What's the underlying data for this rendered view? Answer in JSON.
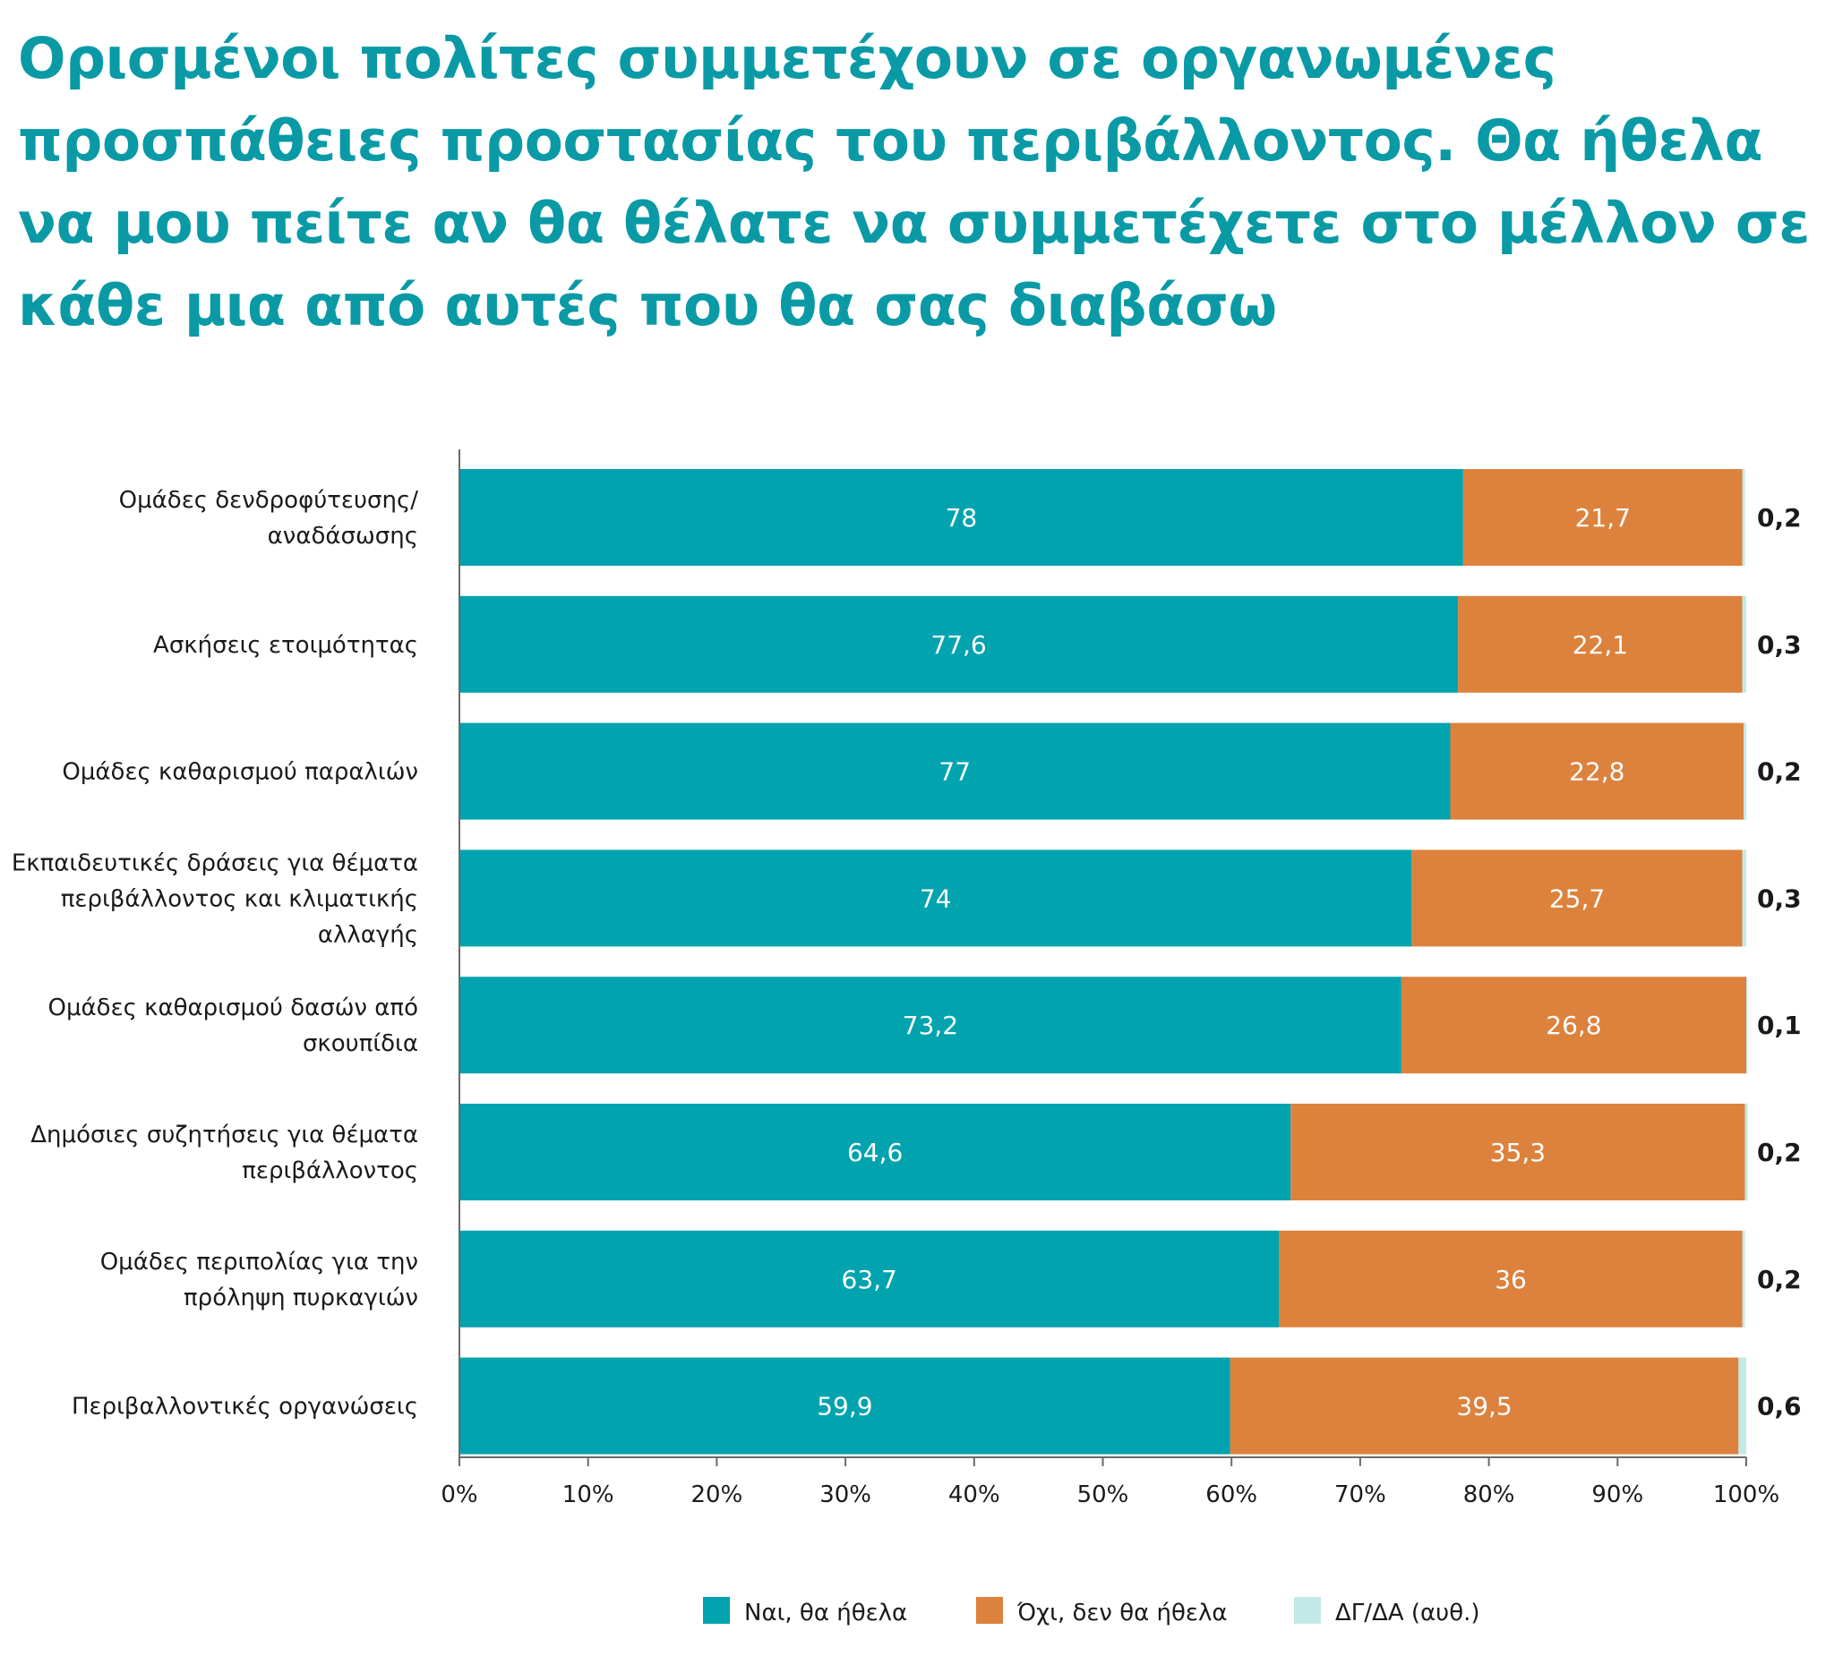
{
  "chart_data": {
    "type": "bar",
    "orientation": "horizontal",
    "stacked": true,
    "title": "Ορισμένοι πολίτες συμμετέχουν σε οργανωμένες προσπάθειες προστασίας του περιβάλλοντος. Θα ήθελα να μου πείτε αν θα θέλατε να συμμετέχετε στο μέλλον σε κάθε μια από αυτές που θα σας διαβάσω",
    "categories": [
      [
        "Ομάδες δενδροφύτευσης/",
        "αναδάσωσης"
      ],
      [
        "Ασκήσεις ετοιμότητας"
      ],
      [
        "Ομάδες καθαρισμού παραλιών"
      ],
      [
        "Εκπαιδευτικές δράσεις για θέματα",
        "περιβάλλοντος και κλιματικής",
        "αλλαγής"
      ],
      [
        "Ομάδες καθαρισμού δασών από",
        "σκουπίδια"
      ],
      [
        "Δημόσιες συζητήσεις για θέματα",
        "περιβάλλοντος"
      ],
      [
        "Ομάδες περιπολίας για την",
        "πρόληψη πυρκαγιών"
      ],
      [
        "Περιβαλλοντικές οργανώσεις"
      ]
    ],
    "series": [
      {
        "name": "Ναι, θα ήθελα",
        "color": "#00a3ae",
        "values": [
          78,
          77.6,
          77,
          74,
          73.2,
          64.6,
          63.7,
          59.9
        ],
        "labels": [
          "78",
          "77,6",
          "77",
          "74",
          "73,2",
          "64,6",
          "63,7",
          "59,9"
        ]
      },
      {
        "name": "Όχι, δεν θα ήθελα",
        "color": "#dc823d",
        "values": [
          21.7,
          22.1,
          22.8,
          25.7,
          26.8,
          35.3,
          36,
          39.5
        ],
        "labels": [
          "21,7",
          "22,1",
          "22,8",
          "25,7",
          "26,8",
          "35,3",
          "36",
          "39,5"
        ]
      },
      {
        "name": "ΔΓ/ΔΑ (αυθ.)",
        "color": "#c3e9e7",
        "values": [
          0.2,
          0.3,
          0.2,
          0.3,
          0.1,
          0.2,
          0.2,
          0.6
        ],
        "labels": [
          "0,2",
          "0,3",
          "0,2",
          "0,3",
          "0,1",
          "0,2",
          "0,2",
          "0,6"
        ]
      }
    ],
    "xlim": [
      0,
      100
    ],
    "xticks": [
      "0%",
      "10%",
      "20%",
      "30%",
      "40%",
      "50%",
      "60%",
      "70%",
      "80%",
      "90%",
      "100%"
    ],
    "grid": false,
    "legend_position": "bottom"
  }
}
